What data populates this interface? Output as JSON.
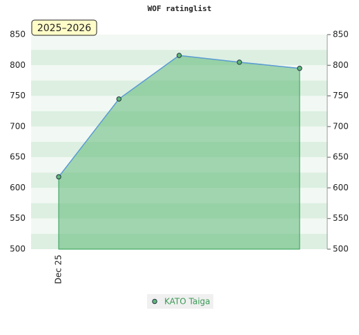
{
  "chart_data": {
    "type": "area",
    "title": "WOF ratinglist",
    "annotation": "2025–2026",
    "categories": [
      "Dec 25",
      null,
      null,
      null,
      null
    ],
    "series": [
      {
        "name": "KATO Taiga",
        "color": "#5fb877",
        "line_color": "#5b9bd5",
        "values": [
          618,
          745,
          816,
          805,
          795
        ]
      }
    ],
    "ylim": [
      500,
      850
    ],
    "yticks": [
      500,
      550,
      600,
      650,
      700,
      750,
      800,
      850
    ],
    "grid": true,
    "legend": "bottom"
  }
}
